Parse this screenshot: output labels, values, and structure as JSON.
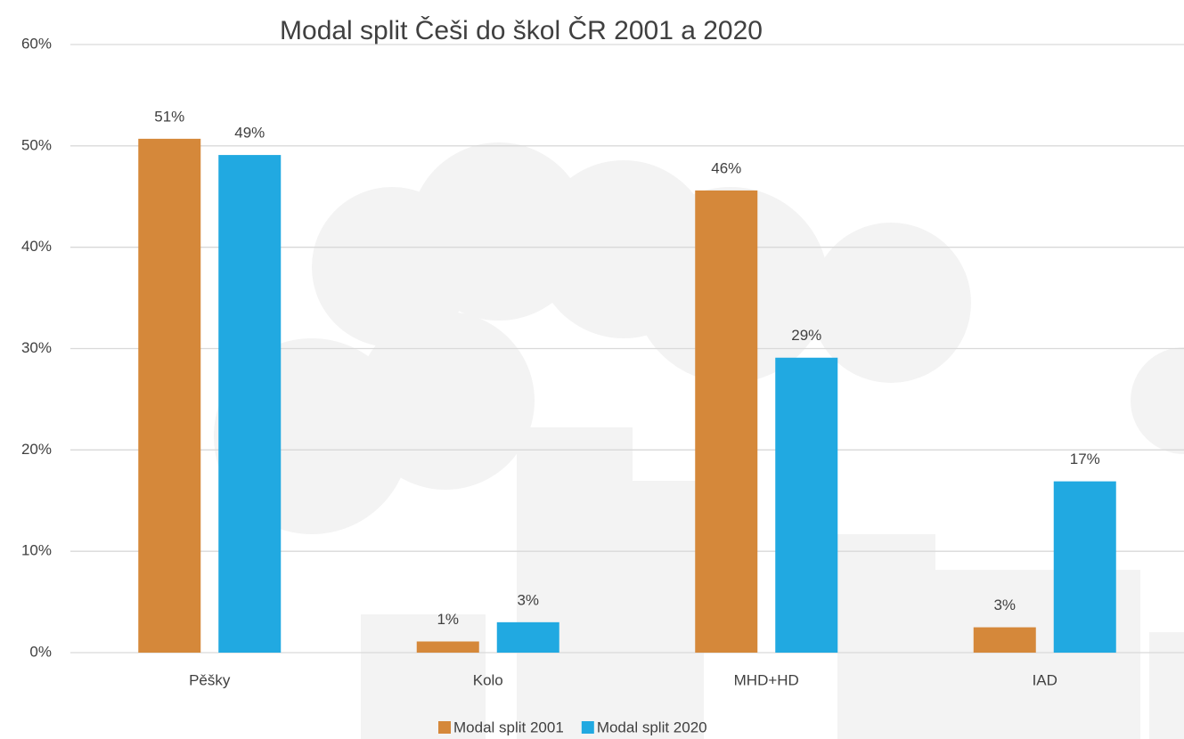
{
  "chart_data": {
    "type": "bar",
    "title": "Modal split Češi do škol ČR 2001 a 2020",
    "categories": [
      "Pěšky",
      "Kolo",
      "MHD+HD",
      "IAD"
    ],
    "series": [
      {
        "name": "Modal split 2001",
        "color": "#d5883a",
        "values": [
          50.7,
          1.1,
          45.6,
          2.5
        ],
        "value_labels": [
          "51%",
          "1%",
          "46%",
          "3%"
        ]
      },
      {
        "name": "Modal split 2020",
        "color": "#21a9e1",
        "values": [
          49.1,
          3.0,
          29.1,
          16.9
        ],
        "value_labels": [
          "49%",
          "3%",
          "29%",
          "17%"
        ]
      }
    ],
    "ylim": [
      0,
      60
    ],
    "yticks": [
      {
        "value": 0,
        "label": "0%"
      },
      {
        "value": 10,
        "label": "10%"
      },
      {
        "value": 20,
        "label": "20%"
      },
      {
        "value": 30,
        "label": "30%"
      },
      {
        "value": 40,
        "label": "40%"
      },
      {
        "value": 50,
        "label": "50%"
      },
      {
        "value": 60,
        "label": "60%"
      }
    ],
    "grid": true
  }
}
